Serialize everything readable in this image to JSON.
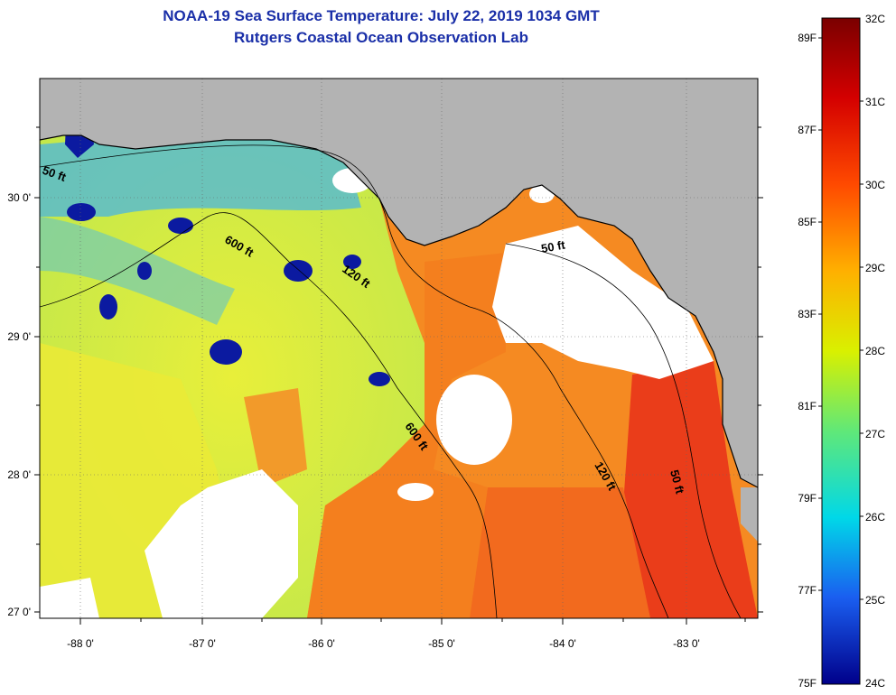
{
  "header": {
    "title": "NOAA-19 Sea Surface Temperature:  July 22, 2019 1034 GMT",
    "subtitle": "Rutgers Coastal Ocean Observation Lab"
  },
  "map": {
    "lat_labels": [
      "30 0'",
      "29 0'",
      "28 0'",
      "27 0'"
    ],
    "lon_labels": [
      "-88 0'",
      "-87 0'",
      "-86 0'",
      "-85 0'",
      "-84 0'",
      "-83 0'"
    ],
    "contours": [
      {
        "id": "c50w",
        "label": "50 ft"
      },
      {
        "id": "c600w",
        "label": "600 ft"
      },
      {
        "id": "c120w",
        "label": "120 ft"
      },
      {
        "id": "c50e",
        "label": "50 ft"
      },
      {
        "id": "c600s",
        "label": "600 ft"
      },
      {
        "id": "c120s",
        "label": "120 ft"
      },
      {
        "id": "c50s",
        "label": "50 ft"
      }
    ],
    "colors": {
      "land": "#b3b3b3",
      "cloud": "#ffffff",
      "warm": "#f47a1e",
      "hot": "#e8281a",
      "mild": "#d8e83a",
      "cool": "#3aa6e8",
      "cold": "#0a1a9c"
    }
  },
  "colorbar": {
    "celsius": [
      "32C",
      "31C",
      "30C",
      "29C",
      "28C",
      "27C",
      "26C",
      "25C",
      "24C"
    ],
    "fahrenheit": [
      "89F",
      "87F",
      "85F",
      "83F",
      "81F",
      "79F",
      "77F",
      "75F"
    ]
  }
}
